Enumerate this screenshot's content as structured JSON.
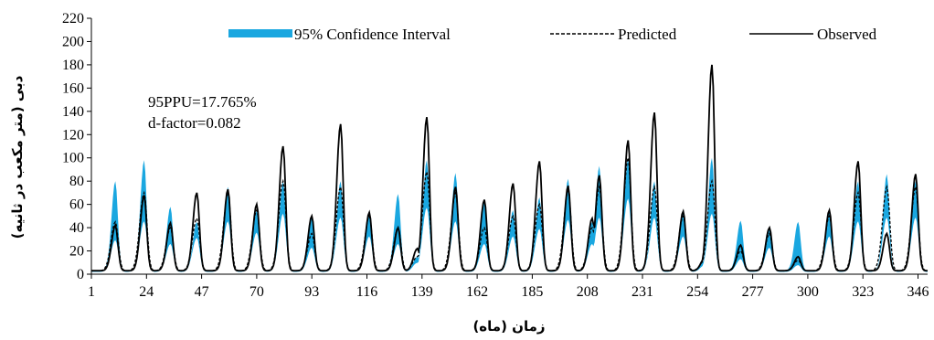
{
  "chart_data": {
    "type": "line",
    "title": "",
    "xlabel": "زمان (ماه)",
    "ylabel": "دبی (متر مکعب در ثانیه)",
    "xlim": [
      1,
      350
    ],
    "ylim": [
      0,
      220
    ],
    "x_ticks": [
      1,
      24,
      47,
      70,
      93,
      116,
      139,
      162,
      185,
      208,
      231,
      254,
      277,
      300,
      323,
      346
    ],
    "y_ticks": [
      0,
      20,
      40,
      60,
      80,
      100,
      120,
      140,
      160,
      180,
      200,
      220
    ],
    "grid": false,
    "legend_position": "top",
    "annotations": [
      "95PPU=17.765%",
      "d-factor=0.082"
    ],
    "colors": {
      "band": "#1aa7e0",
      "predicted": "#000000",
      "observed": "#000000"
    },
    "legend": [
      {
        "label": "95% Confidence Interval",
        "style": "band"
      },
      {
        "label": "Predicted",
        "style": "dashed"
      },
      {
        "label": "Observed",
        "style": "solid"
      }
    ],
    "series": [
      {
        "name": "Observed",
        "peaks": [
          [
            11,
            42
          ],
          [
            23,
            68
          ],
          [
            34,
            44
          ],
          [
            45,
            70
          ],
          [
            58,
            73
          ],
          [
            70,
            60
          ],
          [
            81,
            110
          ],
          [
            93,
            50
          ],
          [
            105,
            129
          ],
          [
            117,
            53
          ],
          [
            129,
            40
          ],
          [
            137,
            22
          ],
          [
            141,
            135
          ],
          [
            153,
            75
          ],
          [
            165,
            64
          ],
          [
            177,
            78
          ],
          [
            188,
            97
          ],
          [
            200,
            76
          ],
          [
            210,
            48
          ],
          [
            213,
            85
          ],
          [
            225,
            115
          ],
          [
            236,
            139
          ],
          [
            248,
            54
          ],
          [
            257,
            14
          ],
          [
            260,
            180
          ],
          [
            272,
            25
          ],
          [
            284,
            40
          ],
          [
            296,
            15
          ],
          [
            309,
            55
          ],
          [
            321,
            97
          ],
          [
            333,
            35
          ],
          [
            345,
            86
          ]
        ]
      },
      {
        "name": "Predicted",
        "peaks": [
          [
            11,
            45
          ],
          [
            23,
            70
          ],
          [
            34,
            40
          ],
          [
            45,
            48
          ],
          [
            58,
            70
          ],
          [
            70,
            55
          ],
          [
            81,
            80
          ],
          [
            93,
            35
          ],
          [
            105,
            75
          ],
          [
            117,
            50
          ],
          [
            129,
            40
          ],
          [
            137,
            15
          ],
          [
            141,
            88
          ],
          [
            153,
            70
          ],
          [
            165,
            40
          ],
          [
            177,
            50
          ],
          [
            188,
            60
          ],
          [
            200,
            72
          ],
          [
            210,
            40
          ],
          [
            213,
            75
          ],
          [
            225,
            100
          ],
          [
            236,
            75
          ],
          [
            248,
            50
          ],
          [
            257,
            12
          ],
          [
            260,
            80
          ],
          [
            272,
            20
          ],
          [
            284,
            35
          ],
          [
            296,
            12
          ],
          [
            309,
            50
          ],
          [
            321,
            70
          ],
          [
            333,
            75
          ],
          [
            345,
            75
          ]
        ]
      },
      {
        "name": "95% Confidence Interval",
        "peaks": [
          [
            11,
            80
          ],
          [
            23,
            98
          ],
          [
            34,
            58
          ],
          [
            45,
            45
          ],
          [
            58,
            75
          ],
          [
            70,
            55
          ],
          [
            81,
            80
          ],
          [
            93,
            50
          ],
          [
            105,
            80
          ],
          [
            117,
            52
          ],
          [
            129,
            69
          ],
          [
            137,
            15
          ],
          [
            141,
            98
          ],
          [
            153,
            87
          ],
          [
            165,
            62
          ],
          [
            177,
            55
          ],
          [
            188,
            66
          ],
          [
            200,
            82
          ],
          [
            210,
            45
          ],
          [
            213,
            93
          ],
          [
            225,
            100
          ],
          [
            236,
            80
          ],
          [
            248,
            52
          ],
          [
            257,
            12
          ],
          [
            260,
            100
          ],
          [
            272,
            46
          ],
          [
            284,
            40
          ],
          [
            296,
            45
          ],
          [
            309,
            55
          ],
          [
            321,
            80
          ],
          [
            333,
            86
          ],
          [
            345,
            80
          ]
        ]
      }
    ]
  }
}
